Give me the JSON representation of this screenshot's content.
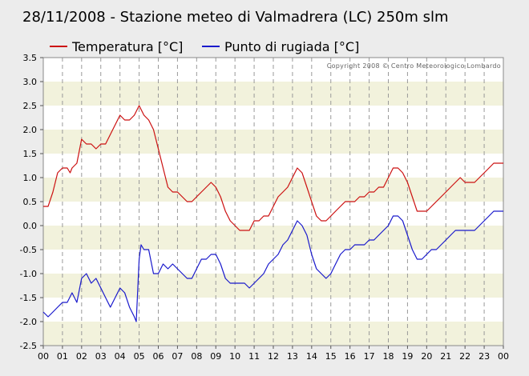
{
  "chart_data": {
    "type": "line",
    "title": "28/11/2008 - Stazione meteo di Valmadrera (LC) 250m slm",
    "copyright": "Copyright 2008 © Centro Meteorologico Lombardo",
    "x_ticks": [
      "00",
      "01",
      "02",
      "03",
      "04",
      "05",
      "06",
      "07",
      "08",
      "09",
      "10",
      "11",
      "12",
      "13",
      "14",
      "15",
      "16",
      "17",
      "18",
      "19",
      "20",
      "21",
      "22",
      "23",
      "00"
    ],
    "y_ticks": [
      "3.5",
      "3.0",
      "2.5",
      "2.0",
      "1.5",
      "1.0",
      "0.5",
      "0.0",
      "-0.5",
      "-1.0",
      "-1.5",
      "-2.0",
      "-2.5"
    ],
    "xlim": [
      0,
      24
    ],
    "ylim": [
      -2.5,
      3.5
    ],
    "grid": true,
    "legend_position": "top-left",
    "series": [
      {
        "name": "Temperatura [°C]",
        "color": "#cc1111",
        "points": [
          [
            0,
            0.4
          ],
          [
            0.25,
            0.4
          ],
          [
            0.5,
            0.7
          ],
          [
            0.75,
            1.1
          ],
          [
            1,
            1.2
          ],
          [
            1.25,
            1.2
          ],
          [
            1.4,
            1.1
          ],
          [
            1.5,
            1.2
          ],
          [
            1.75,
            1.3
          ],
          [
            2,
            1.8
          ],
          [
            2.25,
            1.7
          ],
          [
            2.5,
            1.7
          ],
          [
            2.75,
            1.6
          ],
          [
            3,
            1.7
          ],
          [
            3.25,
            1.7
          ],
          [
            3.5,
            1.9
          ],
          [
            3.75,
            2.1
          ],
          [
            4,
            2.3
          ],
          [
            4.25,
            2.2
          ],
          [
            4.5,
            2.2
          ],
          [
            4.75,
            2.3
          ],
          [
            5,
            2.5
          ],
          [
            5.25,
            2.3
          ],
          [
            5.5,
            2.2
          ],
          [
            5.75,
            2.0
          ],
          [
            6,
            1.6
          ],
          [
            6.25,
            1.2
          ],
          [
            6.5,
            0.8
          ],
          [
            6.75,
            0.7
          ],
          [
            7,
            0.7
          ],
          [
            7.25,
            0.6
          ],
          [
            7.5,
            0.5
          ],
          [
            7.75,
            0.5
          ],
          [
            8,
            0.6
          ],
          [
            8.25,
            0.7
          ],
          [
            8.5,
            0.8
          ],
          [
            8.75,
            0.9
          ],
          [
            9,
            0.8
          ],
          [
            9.25,
            0.6
          ],
          [
            9.5,
            0.3
          ],
          [
            9.75,
            0.1
          ],
          [
            10,
            0.0
          ],
          [
            10.25,
            -0.1
          ],
          [
            10.5,
            -0.1
          ],
          [
            10.75,
            -0.1
          ],
          [
            11,
            0.1
          ],
          [
            11.25,
            0.1
          ],
          [
            11.5,
            0.2
          ],
          [
            11.75,
            0.2
          ],
          [
            12,
            0.4
          ],
          [
            12.25,
            0.6
          ],
          [
            12.5,
            0.7
          ],
          [
            12.75,
            0.8
          ],
          [
            13,
            1.0
          ],
          [
            13.25,
            1.2
          ],
          [
            13.5,
            1.1
          ],
          [
            13.75,
            0.8
          ],
          [
            14,
            0.5
          ],
          [
            14.25,
            0.2
          ],
          [
            14.5,
            0.1
          ],
          [
            14.75,
            0.1
          ],
          [
            15,
            0.2
          ],
          [
            15.25,
            0.3
          ],
          [
            15.5,
            0.4
          ],
          [
            15.75,
            0.5
          ],
          [
            16,
            0.5
          ],
          [
            16.25,
            0.5
          ],
          [
            16.5,
            0.6
          ],
          [
            16.75,
            0.6
          ],
          [
            17,
            0.7
          ],
          [
            17.25,
            0.7
          ],
          [
            17.5,
            0.8
          ],
          [
            17.75,
            0.8
          ],
          [
            18,
            1.0
          ],
          [
            18.25,
            1.2
          ],
          [
            18.5,
            1.2
          ],
          [
            18.75,
            1.1
          ],
          [
            19,
            0.9
          ],
          [
            19.25,
            0.6
          ],
          [
            19.5,
            0.3
          ],
          [
            19.75,
            0.3
          ],
          [
            20,
            0.3
          ],
          [
            20.25,
            0.4
          ],
          [
            20.5,
            0.5
          ],
          [
            20.75,
            0.6
          ],
          [
            21,
            0.7
          ],
          [
            21.25,
            0.8
          ],
          [
            21.5,
            0.9
          ],
          [
            21.75,
            1.0
          ],
          [
            22,
            0.9
          ],
          [
            22.25,
            0.9
          ],
          [
            22.5,
            0.9
          ],
          [
            22.75,
            1.0
          ],
          [
            23,
            1.1
          ],
          [
            23.25,
            1.2
          ],
          [
            23.5,
            1.3
          ],
          [
            23.75,
            1.3
          ],
          [
            24,
            1.3
          ]
        ]
      },
      {
        "name": "Punto di rugiada [°C]",
        "color": "#1a1acc",
        "points": [
          [
            0,
            -1.8
          ],
          [
            0.25,
            -1.9
          ],
          [
            0.5,
            -1.8
          ],
          [
            0.75,
            -1.7
          ],
          [
            1,
            -1.6
          ],
          [
            1.25,
            -1.6
          ],
          [
            1.5,
            -1.4
          ],
          [
            1.75,
            -1.6
          ],
          [
            2,
            -1.1
          ],
          [
            2.25,
            -1.0
          ],
          [
            2.5,
            -1.2
          ],
          [
            2.75,
            -1.1
          ],
          [
            3,
            -1.3
          ],
          [
            3.25,
            -1.5
          ],
          [
            3.5,
            -1.7
          ],
          [
            3.75,
            -1.5
          ],
          [
            4,
            -1.3
          ],
          [
            4.25,
            -1.4
          ],
          [
            4.5,
            -1.7
          ],
          [
            4.75,
            -1.9
          ],
          [
            4.85,
            -2.0
          ],
          [
            5,
            -0.7
          ],
          [
            5.1,
            -0.4
          ],
          [
            5.25,
            -0.5
          ],
          [
            5.5,
            -0.5
          ],
          [
            5.75,
            -1.0
          ],
          [
            6,
            -1.0
          ],
          [
            6.25,
            -0.8
          ],
          [
            6.5,
            -0.9
          ],
          [
            6.75,
            -0.8
          ],
          [
            7,
            -0.9
          ],
          [
            7.25,
            -1.0
          ],
          [
            7.5,
            -1.1
          ],
          [
            7.75,
            -1.1
          ],
          [
            8,
            -0.9
          ],
          [
            8.25,
            -0.7
          ],
          [
            8.5,
            -0.7
          ],
          [
            8.75,
            -0.6
          ],
          [
            9,
            -0.6
          ],
          [
            9.25,
            -0.8
          ],
          [
            9.5,
            -1.1
          ],
          [
            9.75,
            -1.2
          ],
          [
            10,
            -1.2
          ],
          [
            10.25,
            -1.2
          ],
          [
            10.5,
            -1.2
          ],
          [
            10.75,
            -1.3
          ],
          [
            11,
            -1.2
          ],
          [
            11.25,
            -1.1
          ],
          [
            11.5,
            -1.0
          ],
          [
            11.75,
            -0.8
          ],
          [
            12,
            -0.7
          ],
          [
            12.25,
            -0.6
          ],
          [
            12.5,
            -0.4
          ],
          [
            12.75,
            -0.3
          ],
          [
            13,
            -0.1
          ],
          [
            13.25,
            0.1
          ],
          [
            13.5,
            0.0
          ],
          [
            13.75,
            -0.2
          ],
          [
            14,
            -0.6
          ],
          [
            14.25,
            -0.9
          ],
          [
            14.5,
            -1.0
          ],
          [
            14.75,
            -1.1
          ],
          [
            15,
            -1.0
          ],
          [
            15.25,
            -0.8
          ],
          [
            15.5,
            -0.6
          ],
          [
            15.75,
            -0.5
          ],
          [
            16,
            -0.5
          ],
          [
            16.25,
            -0.4
          ],
          [
            16.5,
            -0.4
          ],
          [
            16.75,
            -0.4
          ],
          [
            17,
            -0.3
          ],
          [
            17.25,
            -0.3
          ],
          [
            17.5,
            -0.2
          ],
          [
            17.75,
            -0.1
          ],
          [
            18,
            0.0
          ],
          [
            18.25,
            0.2
          ],
          [
            18.5,
            0.2
          ],
          [
            18.75,
            0.1
          ],
          [
            19,
            -0.2
          ],
          [
            19.25,
            -0.5
          ],
          [
            19.5,
            -0.7
          ],
          [
            19.75,
            -0.7
          ],
          [
            20,
            -0.6
          ],
          [
            20.25,
            -0.5
          ],
          [
            20.5,
            -0.5
          ],
          [
            20.75,
            -0.4
          ],
          [
            21,
            -0.3
          ],
          [
            21.25,
            -0.2
          ],
          [
            21.5,
            -0.1
          ],
          [
            21.75,
            -0.1
          ],
          [
            22,
            -0.1
          ],
          [
            22.25,
            -0.1
          ],
          [
            22.5,
            -0.1
          ],
          [
            22.75,
            0.0
          ],
          [
            23,
            0.1
          ],
          [
            23.25,
            0.2
          ],
          [
            23.5,
            0.3
          ],
          [
            23.75,
            0.3
          ],
          [
            24,
            0.3
          ]
        ]
      }
    ]
  }
}
